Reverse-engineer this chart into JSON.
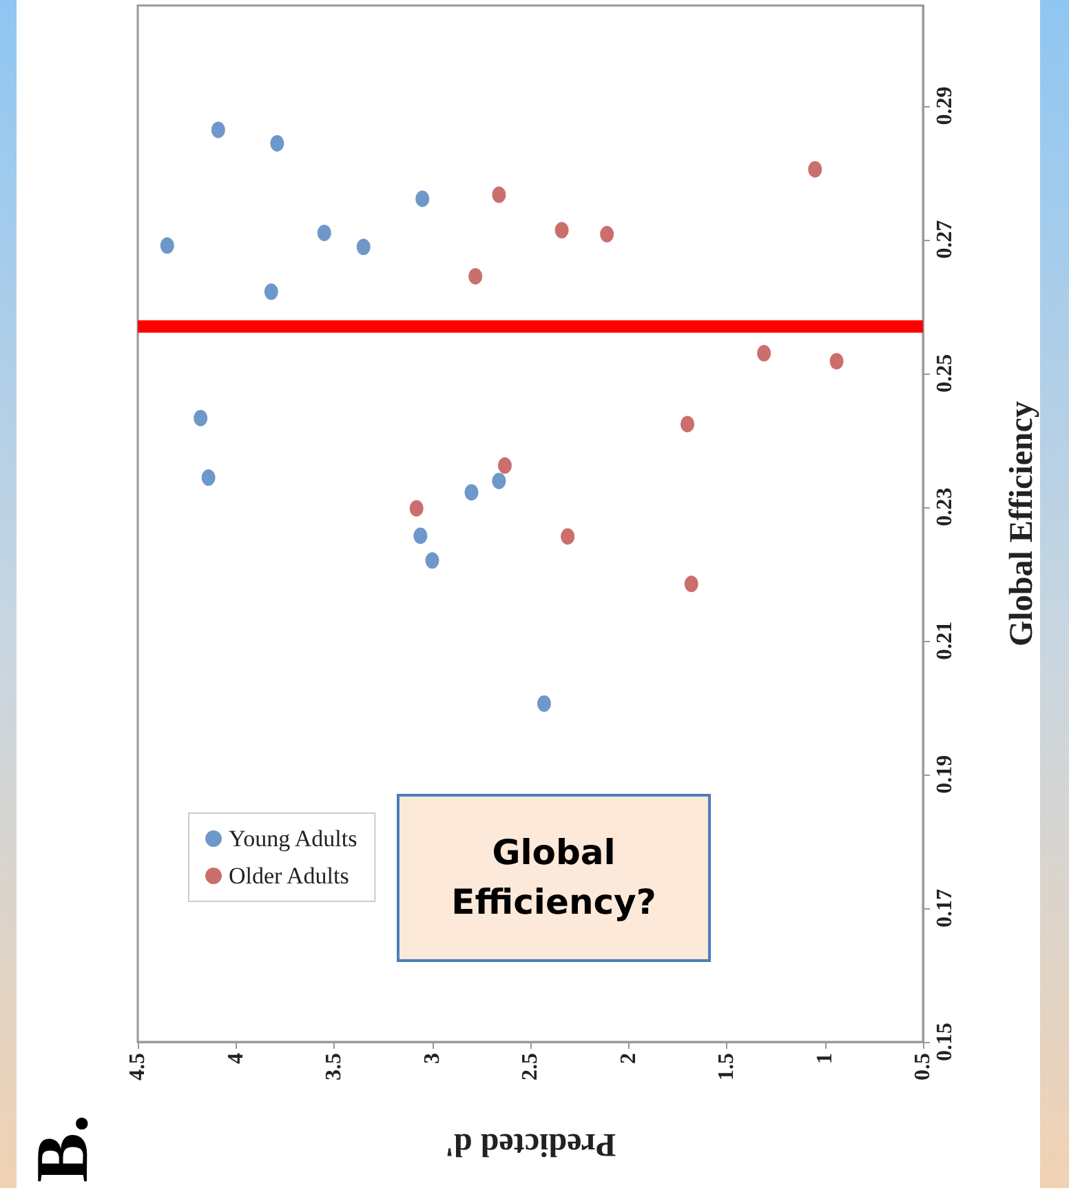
{
  "chart_data": {
    "type": "scatter",
    "title": "B.",
    "xlabel": "Predicted d'",
    "ylabel": "Global Efficiency",
    "xlim": [
      4.5,
      0.5
    ],
    "xticks": [
      4.5,
      4,
      3.5,
      3,
      2.5,
      2,
      1.5,
      1,
      0.5
    ],
    "ylim": [
      0.15,
      0.305
    ],
    "yticks": [
      0.15,
      0.17,
      0.19,
      0.21,
      0.23,
      0.25,
      0.27,
      0.29
    ],
    "series": [
      {
        "name": "Young Adults",
        "color": "#4a7ebb",
        "x": [
          4.09,
          3.79,
          4.35,
          3.55,
          3.35,
          3.05,
          3.82,
          4.18,
          4.14,
          2.8,
          2.66,
          3.06,
          3.0,
          2.43
        ],
        "values": [
          0.2864,
          0.2844,
          0.2691,
          0.271,
          0.2689,
          0.2761,
          0.2622,
          0.2433,
          0.2344,
          0.2322,
          0.2339,
          0.2257,
          0.222,
          0.2006
        ]
      },
      {
        "name": "Older Adults",
        "color": "#be4b48",
        "x": [
          2.66,
          2.34,
          2.11,
          2.78,
          2.63,
          3.08,
          2.31,
          1.05,
          1.31,
          0.94,
          1.7,
          1.68
        ],
        "values": [
          0.2767,
          0.2714,
          0.2708,
          0.2645,
          0.2362,
          0.2298,
          0.2256,
          0.2805,
          0.253,
          0.2518,
          0.2424,
          0.2185
        ]
      }
    ],
    "ref_lines": [
      {
        "axis": "y",
        "value": 0.257,
        "color": "#ff0000"
      }
    ],
    "annotations": [
      "Global Efficiency?"
    ],
    "marker": "circle",
    "legend": "bottom left",
    "grid": false
  }
}
